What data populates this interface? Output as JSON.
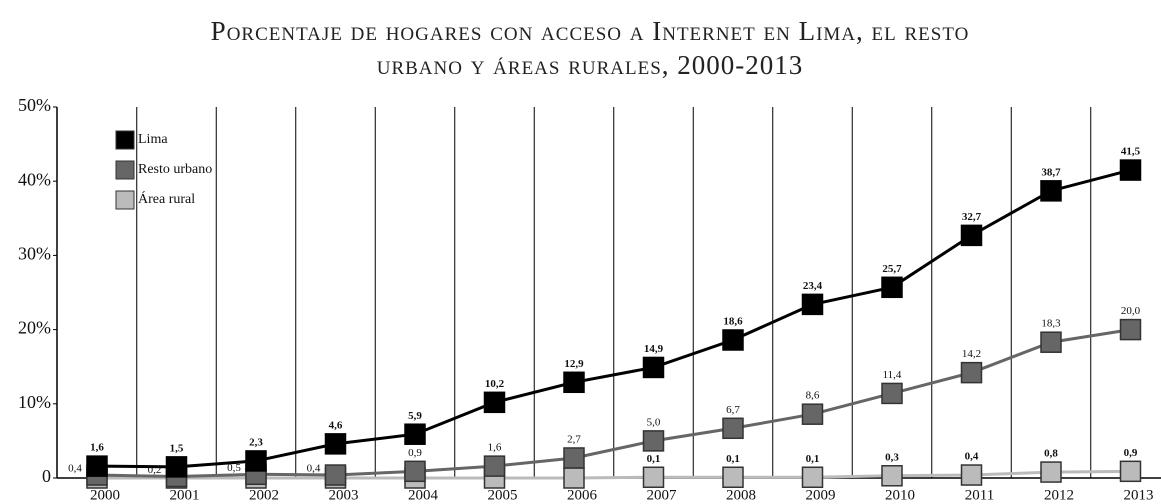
{
  "chart_data": {
    "type": "line",
    "title": "Porcentaje de hogares con acceso a Internet en Lima, el resto urbano y áreas rurales, 2000-2013",
    "categories": [
      "2000",
      "2001",
      "2002",
      "2003",
      "2004",
      "2005",
      "2006",
      "2007",
      "2008",
      "2009",
      "2010",
      "2011",
      "2012",
      "2013"
    ],
    "series": [
      {
        "name": "Lima",
        "color": "#000000",
        "values": [
          1.6,
          1.5,
          2.3,
          4.6,
          5.9,
          10.2,
          12.9,
          14.9,
          18.6,
          23.4,
          25.7,
          32.7,
          38.7,
          41.5
        ],
        "value_labels": [
          "1,6",
          "1,5",
          "2,3",
          "4,6",
          "5,9",
          "10,2",
          "12,9",
          "14,9",
          "18,6",
          "23,4",
          "25,7",
          "32,7",
          "38,7",
          "41,5"
        ]
      },
      {
        "name": "Resto urbano",
        "color": "#666666",
        "values": [
          0.4,
          0.2,
          0.5,
          0.4,
          0.9,
          1.6,
          2.7,
          5.0,
          6.7,
          8.6,
          11.4,
          14.2,
          18.3,
          20.0
        ],
        "value_labels": [
          "0,4",
          "0,2",
          "0,5",
          "0,4",
          "0,9",
          "1,6",
          "2,7",
          "5,0",
          "6,7",
          "8,6",
          "11,4",
          "14,2",
          "18,3",
          "20,0"
        ]
      },
      {
        "name": "Área rural",
        "color": "#bbbbbb",
        "values": [
          0,
          0,
          0,
          0,
          0,
          0,
          0,
          0.1,
          0.1,
          0.1,
          0.3,
          0.4,
          0.8,
          0.9
        ],
        "value_labels": [
          null,
          null,
          null,
          null,
          null,
          null,
          null,
          "0,1",
          "0,1",
          "0,1",
          "0,3",
          "0,4",
          "0,8",
          "0,9"
        ]
      }
    ],
    "ylim": [
      0,
      50
    ],
    "yticks": [
      0,
      {
        "value": 10,
        "label": "10%"
      },
      {
        "value": 20,
        "label": "20%"
      },
      {
        "value": 30,
        "label": "30%"
      },
      {
        "value": 40,
        "label": "40%"
      },
      {
        "value": 50,
        "label": "50%"
      }
    ],
    "legend": "upper left"
  }
}
